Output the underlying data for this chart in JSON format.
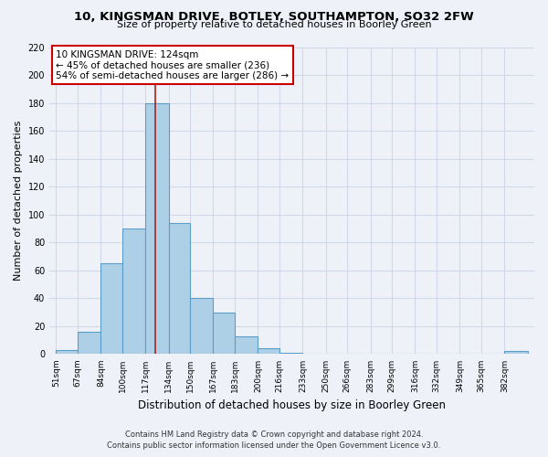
{
  "title": "10, KINGSMAN DRIVE, BOTLEY, SOUTHAMPTON, SO32 2FW",
  "subtitle": "Size of property relative to detached houses in Boorley Green",
  "xlabel": "Distribution of detached houses by size in Boorley Green",
  "ylabel": "Number of detached properties",
  "bar_edges": [
    51,
    67,
    84,
    100,
    117,
    134,
    150,
    167,
    183,
    200,
    216,
    233,
    250,
    266,
    283,
    299,
    316,
    332,
    349,
    365,
    382
  ],
  "bar_heights": [
    3,
    16,
    65,
    90,
    180,
    94,
    40,
    30,
    13,
    4,
    1,
    0,
    0,
    0,
    0,
    0,
    0,
    0,
    0,
    0,
    2
  ],
  "bar_color": "#aed0e6",
  "bar_edge_color": "#5b9dc9",
  "grid_color": "#d0d8e8",
  "background_color": "#eef2f8",
  "ref_line_x": 124,
  "ref_line_color": "#aa2222",
  "annotation_title": "10 KINGSMAN DRIVE: 124sqm",
  "annotation_line1": "← 45% of detached houses are smaller (236)",
  "annotation_line2": "54% of semi-detached houses are larger (286) →",
  "annotation_box_edge_color": "#cc0000",
  "annotation_box_face_color": "#ffffff",
  "ylim": [
    0,
    220
  ],
  "yticks": [
    0,
    20,
    40,
    60,
    80,
    100,
    120,
    140,
    160,
    180,
    200,
    220
  ],
  "xtick_labels": [
    "51sqm",
    "67sqm",
    "84sqm",
    "100sqm",
    "117sqm",
    "134sqm",
    "150sqm",
    "167sqm",
    "183sqm",
    "200sqm",
    "216sqm",
    "233sqm",
    "250sqm",
    "266sqm",
    "283sqm",
    "299sqm",
    "316sqm",
    "332sqm",
    "349sqm",
    "365sqm",
    "382sqm"
  ],
  "footer_line1": "Contains HM Land Registry data © Crown copyright and database right 2024.",
  "footer_line2": "Contains public sector information licensed under the Open Government Licence v3.0."
}
